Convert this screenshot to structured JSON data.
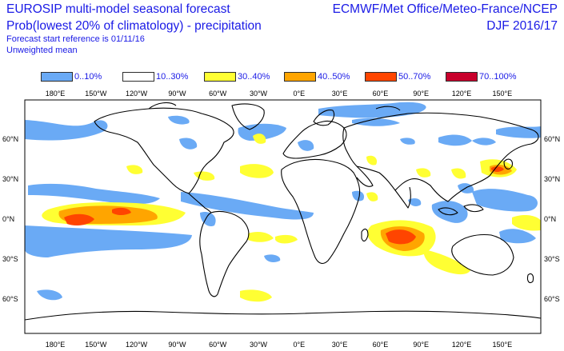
{
  "header": {
    "title_line1": "EUROSIP multi-model seasonal forecast",
    "title_line2": "Prob(lowest 20% of climatology) - precipitation",
    "forecast_ref": "Forecast start reference is 01/11/16",
    "weighting": "Unweighted mean",
    "centres": "ECMWF/Met Office/Meteo-France/NCEP",
    "season": "DJF 2016/17"
  },
  "legend": [
    {
      "label": "0..10%",
      "color": "#6aaaf5"
    },
    {
      "label": "10..30%",
      "color": "#ffffff"
    },
    {
      "label": "30..40%",
      "color": "#ffff33"
    },
    {
      "label": "40..50%",
      "color": "#ffa500"
    },
    {
      "label": "50..70%",
      "color": "#ff4500"
    },
    {
      "label": "70..100%",
      "color": "#c8002b"
    }
  ],
  "axes": {
    "lon_labels": [
      "180°E",
      "150°W",
      "120°W",
      "90°W",
      "60°W",
      "30°W",
      "0°E",
      "30°E",
      "60°E",
      "90°E",
      "120°E",
      "150°E"
    ],
    "lat_labels": [
      "60°N",
      "30°N",
      "0°N",
      "30°S",
      "60°S"
    ]
  }
}
